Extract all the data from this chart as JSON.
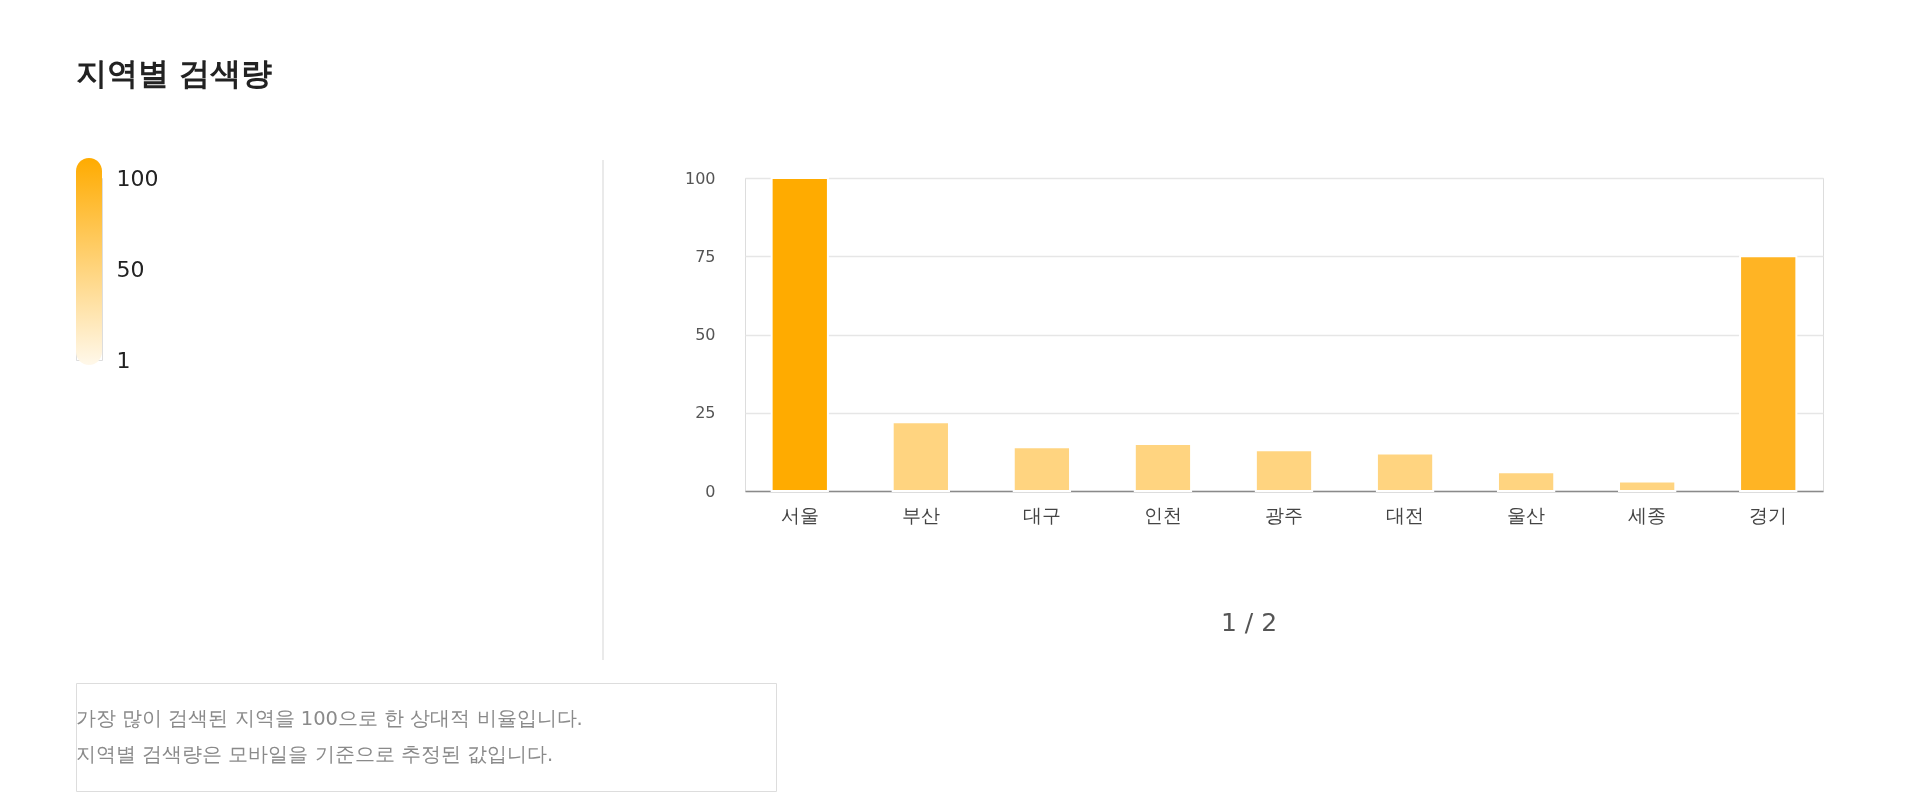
{
  "chart_data": {
    "type": "bar",
    "title": "지역별 검색량",
    "categories": [
      "서울",
      "부산",
      "대구",
      "인천",
      "광주",
      "대전",
      "울산",
      "세종",
      "경기"
    ],
    "values": [
      100,
      22,
      14,
      15,
      13,
      12,
      6,
      3,
      75
    ],
    "colors": [
      "#ffab00",
      "#ffd480",
      "#ffd480",
      "#ffd480",
      "#ffd480",
      "#ffd480",
      "#ffd480",
      "#ffd480",
      "#ffb424"
    ],
    "ylim": [
      0,
      100
    ],
    "yticks": [
      0,
      25,
      50,
      75,
      100
    ],
    "grid": "y",
    "clim": [
      1,
      100
    ],
    "cticks": [
      1,
      50,
      100
    ],
    "annotations": [
      "1 / 2",
      "가장 많이 검색된 지역을 100으로 한 상대적 비율입니다.",
      "지역별 검색량은 모바일을 기준으로 추정된 값입니다."
    ]
  }
}
